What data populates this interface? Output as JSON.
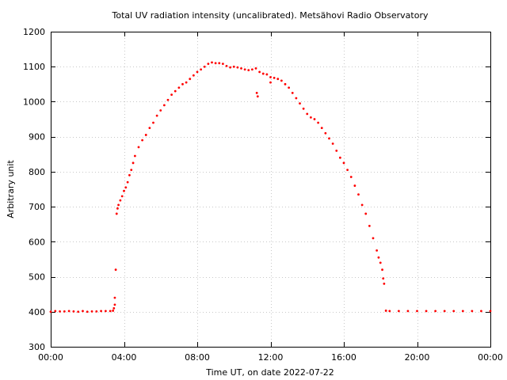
{
  "chart_data": {
    "type": "scatter",
    "title": "Total UV radiation intensity (uncalibrated). Metsähovi Radio Observatory",
    "xlabel": "Time UT, on date 2022-07-22",
    "ylabel": "Arbitrary unit",
    "xlim": [
      0,
      24
    ],
    "ylim": [
      300,
      1200
    ],
    "x_ticks": [
      0,
      4,
      8,
      12,
      16,
      20,
      24
    ],
    "x_tick_labels": [
      "00:00",
      "04:00",
      "08:00",
      "12:00",
      "16:00",
      "20:00",
      "00:00"
    ],
    "y_ticks": [
      300,
      400,
      500,
      600,
      700,
      800,
      900,
      1000,
      1100,
      1200
    ],
    "y_tick_labels": [
      "300",
      "400",
      "500",
      "600",
      "700",
      "800",
      "900",
      "1000",
      "1100",
      "1200"
    ],
    "grid": true,
    "marker_color": "#ff0000",
    "series": [
      {
        "x": [
          0.0,
          0.25,
          0.5,
          0.75,
          1.0,
          1.25,
          1.5,
          1.75,
          2.0,
          2.25,
          2.5,
          2.75,
          3.0,
          3.25,
          3.4,
          3.5,
          3.55,
          3.6,
          3.65,
          3.7,
          3.8,
          3.9,
          4.0,
          4.1,
          4.2,
          4.3,
          4.4,
          4.5,
          4.6,
          4.8,
          5.0,
          5.2,
          5.4,
          5.6,
          5.8,
          6.0,
          6.2,
          6.4,
          6.6,
          6.8,
          7.0,
          7.2,
          7.4,
          7.6,
          7.8,
          8.0,
          8.2,
          8.4,
          8.6,
          8.8,
          9.0,
          9.2,
          9.4,
          9.6,
          9.8,
          10.0,
          10.2,
          10.4,
          10.6,
          10.8,
          11.0,
          11.2,
          11.4,
          11.6,
          11.8,
          12.0,
          12.2,
          12.4,
          12.6,
          12.8,
          13.0,
          13.2,
          13.4,
          13.6,
          13.8,
          14.0,
          14.2,
          14.4,
          14.6,
          14.8,
          15.0,
          15.2,
          15.4,
          15.6,
          15.8,
          16.0,
          16.2,
          16.4,
          16.6,
          16.8,
          17.0,
          17.2,
          17.4,
          17.6,
          17.8,
          17.9,
          18.0,
          18.1,
          18.15,
          18.2,
          18.3,
          18.5,
          19.0,
          19.5,
          20.0,
          20.5,
          21.0,
          21.5,
          22.0,
          22.5,
          23.0,
          23.5,
          24.0,
          11.25,
          11.3,
          12.0,
          3.5,
          3.45
        ],
        "y": [
          400,
          402,
          401,
          401,
          402,
          401,
          400,
          402,
          400,
          401,
          401,
          402,
          402,
          402,
          403,
          440,
          520,
          680,
          695,
          705,
          718,
          730,
          745,
          755,
          770,
          790,
          805,
          825,
          845,
          870,
          890,
          905,
          925,
          940,
          960,
          975,
          990,
          1005,
          1020,
          1030,
          1040,
          1050,
          1055,
          1065,
          1075,
          1085,
          1092,
          1100,
          1108,
          1112,
          1110,
          1110,
          1108,
          1102,
          1098,
          1100,
          1098,
          1095,
          1092,
          1090,
          1092,
          1095,
          1085,
          1080,
          1078,
          1070,
          1068,
          1065,
          1060,
          1050,
          1040,
          1025,
          1010,
          995,
          980,
          965,
          955,
          950,
          940,
          925,
          910,
          895,
          880,
          860,
          840,
          825,
          805,
          785,
          760,
          735,
          705,
          680,
          645,
          610,
          575,
          555,
          540,
          520,
          495,
          480,
          403,
          402,
          402,
          402,
          402,
          402,
          402,
          402,
          402,
          402,
          402,
          402,
          402,
          1025,
          1015,
          1055,
          420,
          410
        ]
      }
    ]
  }
}
